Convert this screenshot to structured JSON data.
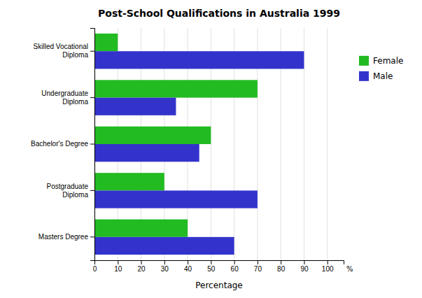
{
  "chart_data": {
    "type": "bar",
    "orientation": "horizontal",
    "title": "Post-School Qualifications in Australia 1999",
    "xlabel": "Percentage",
    "categories": [
      "Masters Degree",
      "Postgraduate\nDiploma",
      "Bachelor's Degree",
      "Undergraduate\nDiploma",
      "Skilled Vocational\nDiploma"
    ],
    "series": [
      {
        "name": "Female",
        "color": "#22bb22",
        "values": [
          40,
          30,
          50,
          70,
          10
        ]
      },
      {
        "name": "Male",
        "color": "#3333cc",
        "values": [
          60,
          70,
          45,
          35,
          90
        ]
      }
    ],
    "xlim": [
      0,
      107
    ],
    "xticks": [
      0,
      10,
      20,
      30,
      40,
      50,
      60,
      70,
      80,
      90,
      100
    ],
    "annotations": [
      "%"
    ],
    "grid": true,
    "legend": "right"
  }
}
